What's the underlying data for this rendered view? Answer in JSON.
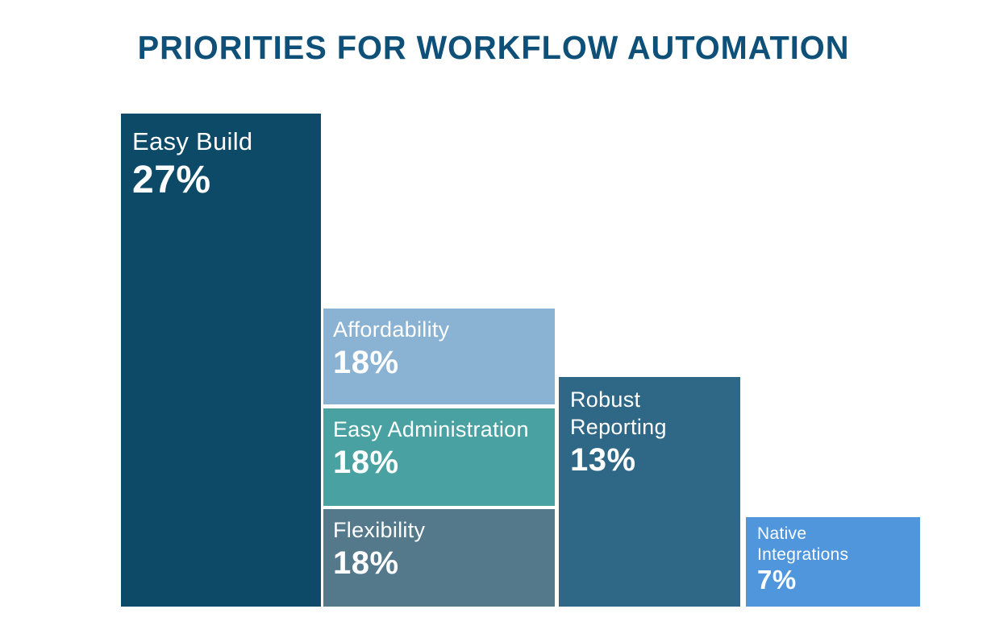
{
  "header": {
    "title": "PRIORITIES FOR WORKFLOW AUTOMATION",
    "title_color": "#0e5078"
  },
  "page": {
    "background": "#ffffff",
    "text_color_on_bars": "#ffffff"
  },
  "chart_data": {
    "type": "bar",
    "title": "PRIORITIES FOR WORKFLOW AUTOMATION",
    "orientation": "vertical",
    "unit": "%",
    "axes_shown": false,
    "grid": false,
    "legend": "none",
    "value_labels_shown": true,
    "categories": [
      "Easy Build",
      "Affordability",
      "Easy Administration",
      "Flexibility",
      "Robust Reporting",
      "Native Integrations"
    ],
    "values": [
      27,
      18,
      18,
      18,
      13,
      7
    ],
    "bars": [
      {
        "label": "Easy Build",
        "value": 27,
        "value_label": "27%",
        "color": "#0c4a67"
      },
      {
        "label": "Affordability",
        "value": 18,
        "value_label": "18%",
        "color": "#8ab2d3"
      },
      {
        "label": "Easy Administration",
        "value": 18,
        "value_label": "18%",
        "color": "#49a2a1"
      },
      {
        "label": "Flexibility",
        "value": 18,
        "value_label": "18%",
        "color": "#53798b"
      },
      {
        "label": "Robust Reporting",
        "value": 13,
        "value_label": "13%",
        "color": "#2f6787"
      },
      {
        "label": "Native Integrations",
        "value": 7,
        "value_label": "7%",
        "color": "#4f96dd"
      }
    ],
    "layout_hint": "infographic: three 18% bars stacked in one middle column; all columns share bottom baseline; thin white gaps between blocks"
  }
}
